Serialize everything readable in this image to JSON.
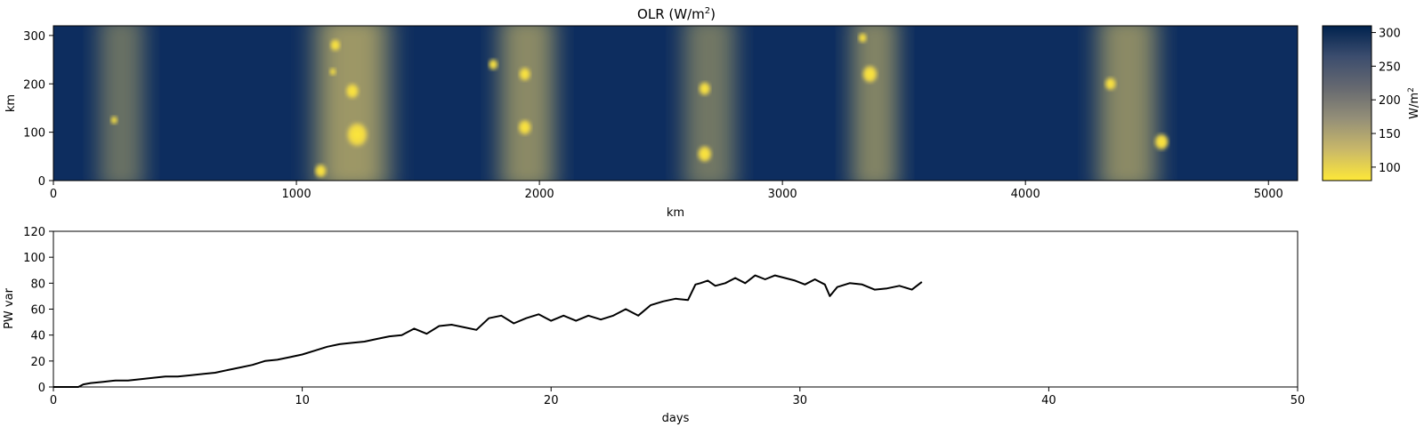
{
  "chart_data": [
    {
      "type": "heatmap",
      "title": "OLR (W/m",
      "title_sup": "2",
      "title_end": ")",
      "xlabel": "km",
      "ylabel": "km",
      "xlim": [
        0,
        5120
      ],
      "ylim": [
        0,
        320
      ],
      "xticks": [
        0,
        1000,
        2000,
        3000,
        4000,
        5000
      ],
      "yticks": [
        0,
        100,
        200,
        300
      ],
      "colormap": "cividis",
      "colormap_colors": [
        "#fee838",
        "#c9b869",
        "#948f78",
        "#666970",
        "#3c4d6e",
        "#00224e"
      ],
      "colorbar": {
        "label": "W/m",
        "label_sup": "2",
        "range": [
          80,
          310
        ],
        "ticks": [
          100,
          150,
          200,
          250,
          300
        ]
      },
      "convective_bands": [
        {
          "x_center": 280,
          "width": 260,
          "intensity": 0.55
        },
        {
          "x_center": 1230,
          "width": 420,
          "intensity": 0.85
        },
        {
          "x_center": 1950,
          "width": 320,
          "intensity": 0.75
        },
        {
          "x_center": 2700,
          "width": 300,
          "intensity": 0.6
        },
        {
          "x_center": 3380,
          "width": 270,
          "intensity": 0.7
        },
        {
          "x_center": 4420,
          "width": 340,
          "intensity": 0.75
        }
      ],
      "cells": [
        {
          "x": 250,
          "y": 125,
          "r": 15
        },
        {
          "x": 1160,
          "y": 280,
          "r": 22
        },
        {
          "x": 1150,
          "y": 225,
          "r": 14
        },
        {
          "x": 1230,
          "y": 185,
          "r": 28
        },
        {
          "x": 1250,
          "y": 95,
          "r": 45
        },
        {
          "x": 1100,
          "y": 20,
          "r": 25
        },
        {
          "x": 1810,
          "y": 240,
          "r": 20
        },
        {
          "x": 1940,
          "y": 220,
          "r": 25
        },
        {
          "x": 1940,
          "y": 110,
          "r": 28
        },
        {
          "x": 2680,
          "y": 190,
          "r": 25
        },
        {
          "x": 2680,
          "y": 55,
          "r": 30
        },
        {
          "x": 3360,
          "y": 220,
          "r": 32
        },
        {
          "x": 3330,
          "y": 295,
          "r": 18
        },
        {
          "x": 4350,
          "y": 200,
          "r": 24
        },
        {
          "x": 4560,
          "y": 80,
          "r": 30
        }
      ]
    },
    {
      "type": "line",
      "xlabel": "days",
      "ylabel": "PW var",
      "xlim": [
        0,
        50
      ],
      "ylim": [
        0,
        120
      ],
      "xticks": [
        0,
        10,
        20,
        30,
        40,
        50
      ],
      "yticks": [
        0,
        20,
        40,
        60,
        80,
        100,
        120
      ],
      "color": "#000000",
      "x": [
        0,
        0.5,
        1,
        1.2,
        1.5,
        2,
        2.5,
        3,
        3.5,
        4,
        4.5,
        5,
        5.5,
        6,
        6.5,
        7,
        7.5,
        8,
        8.5,
        9,
        9.5,
        10,
        10.5,
        11,
        11.5,
        12,
        12.5,
        13,
        13.5,
        14,
        14.5,
        15,
        15.5,
        16,
        16.5,
        17,
        17.5,
        18,
        18.5,
        19,
        19.5,
        20,
        20.5,
        21,
        21.5,
        22,
        22.5,
        23,
        23.5,
        24,
        24.5,
        25,
        25.5,
        25.8,
        26,
        26.3,
        26.6,
        27,
        27.4,
        27.8,
        28.2,
        28.6,
        29,
        29.4,
        29.8,
        30.2,
        30.6,
        31,
        31.2,
        31.5,
        32,
        32.5,
        33,
        33.5,
        34,
        34.5,
        34.9
      ],
      "y": [
        0,
        0,
        0,
        2,
        3,
        4,
        5,
        5,
        6,
        7,
        8,
        8,
        9,
        10,
        11,
        13,
        15,
        17,
        20,
        21,
        23,
        25,
        28,
        31,
        33,
        34,
        35,
        37,
        39,
        40,
        45,
        41,
        47,
        48,
        46,
        44,
        53,
        55,
        49,
        53,
        56,
        51,
        55,
        51,
        55,
        52,
        55,
        60,
        55,
        63,
        66,
        68,
        67,
        79,
        80,
        82,
        78,
        80,
        84,
        80,
        86,
        83,
        86,
        84,
        82,
        79,
        83,
        79,
        70,
        77,
        80,
        79,
        75,
        76,
        78,
        75,
        81
      ]
    }
  ]
}
